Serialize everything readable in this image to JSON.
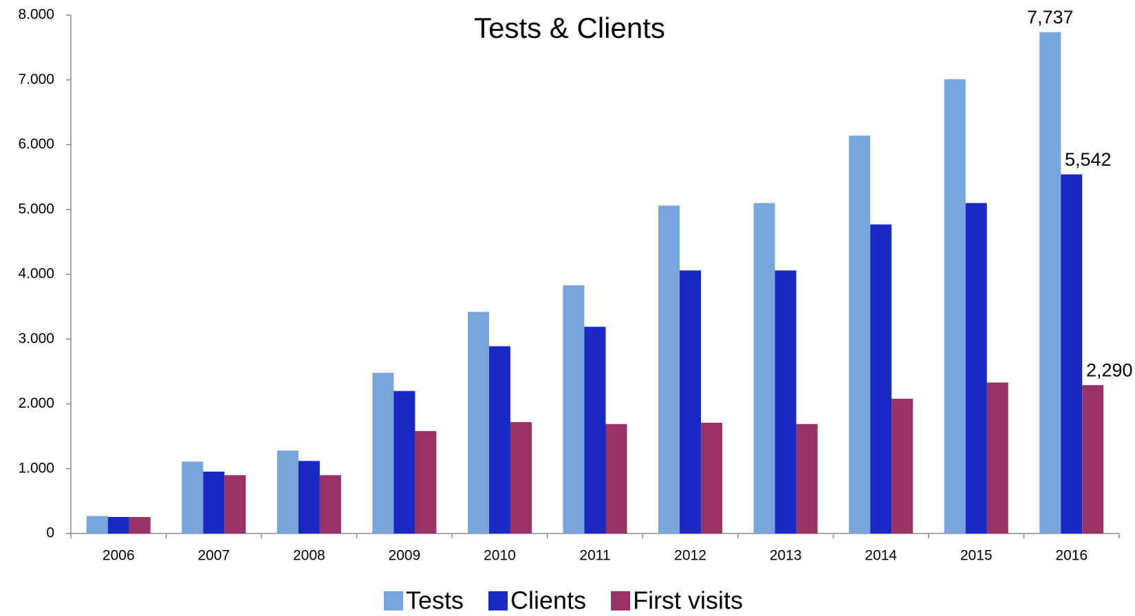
{
  "chart_data": {
    "type": "bar",
    "title": "Tests & Clients",
    "categories": [
      "2006",
      "2007",
      "2008",
      "2009",
      "2010",
      "2011",
      "2012",
      "2013",
      "2014",
      "2015",
      "2016"
    ],
    "series": [
      {
        "name": "Tests",
        "color": "#77a6dc",
        "values": [
          270,
          1110,
          1280,
          2480,
          3420,
          3830,
          5060,
          5100,
          6140,
          7010,
          7737
        ],
        "value_labels": [
          null,
          null,
          null,
          null,
          null,
          null,
          null,
          null,
          null,
          null,
          "7,737"
        ]
      },
      {
        "name": "Clients",
        "color": "#1a28c4",
        "values": [
          255,
          955,
          1120,
          2200,
          2890,
          3190,
          4060,
          4060,
          4770,
          5100,
          5542
        ],
        "value_labels": [
          null,
          null,
          null,
          null,
          null,
          null,
          null,
          null,
          null,
          null,
          "5,542"
        ]
      },
      {
        "name": "First visits",
        "color": "#993366",
        "values": [
          255,
          900,
          900,
          1580,
          1720,
          1690,
          1710,
          1690,
          2080,
          2330,
          2290
        ],
        "value_labels": [
          null,
          null,
          null,
          null,
          null,
          null,
          null,
          null,
          null,
          null,
          "2,290"
        ]
      }
    ],
    "ylim": [
      0,
      8000
    ],
    "yticks": [
      0,
      {
        "value": 1000,
        "label": "1.000"
      },
      {
        "value": 2000,
        "label": "2.000"
      },
      {
        "value": 3000,
        "label": "3.000"
      },
      {
        "value": 4000,
        "label": "4.000"
      },
      {
        "value": 5000,
        "label": "5.000"
      },
      {
        "value": 6000,
        "label": "6.000"
      },
      {
        "value": 7000,
        "label": "7.000"
      },
      {
        "value": 8000,
        "label": "8.000"
      }
    ],
    "grid": false,
    "legend": "bottom"
  }
}
